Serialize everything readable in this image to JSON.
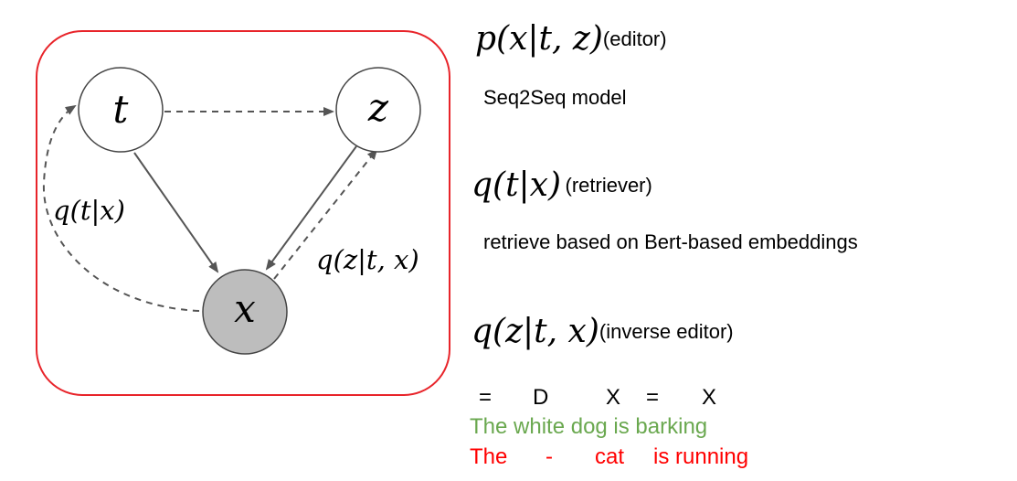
{
  "diagram": {
    "nodes": {
      "t": "t",
      "z": "z",
      "x": "x"
    },
    "edge_labels": {
      "q_t_x": "q(t|x)",
      "q_z_tx": "q(z|t, x)"
    },
    "colors": {
      "frame": "#e8242a",
      "observed_fill": "#bdbdbd",
      "edge": "#555555"
    }
  },
  "components": [
    {
      "formula": "p(x|t, z)",
      "role": "(editor)",
      "description": "Seq2Seq model"
    },
    {
      "formula": "q(t|x)",
      "role": "(retriever)",
      "description": "retrieve based on Bert-based embeddings"
    },
    {
      "formula": "q(z|t, x)",
      "role": "(inverse editor)"
    }
  ],
  "edit_ops": [
    "=",
    "D",
    "X",
    "=",
    "X"
  ],
  "example": {
    "source": "The white dog is barking",
    "target_tokens": [
      "The",
      "-",
      "cat",
      "is running"
    ],
    "colors": {
      "source": "#6aa84f",
      "target": "#ff0000"
    }
  }
}
